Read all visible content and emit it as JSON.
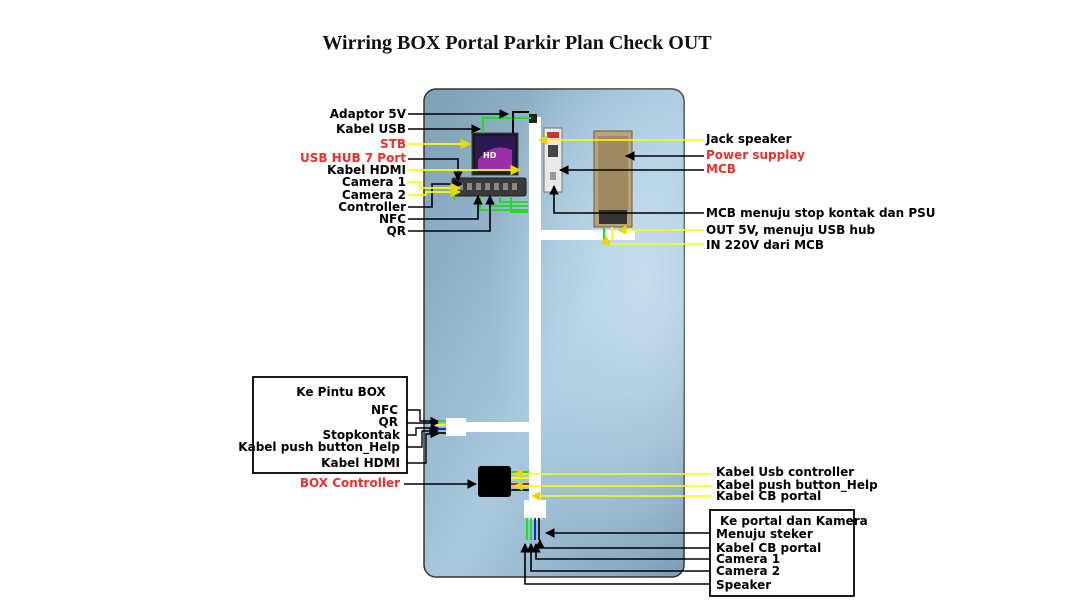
{
  "title": "Wirring BOX Portal Parkir Plan Check OUT",
  "left_labels": {
    "adaptor": "Adaptor 5V",
    "kabel_usb": "Kabel USB",
    "stb": "STB",
    "usb_hub": "USB HUB 7 Port",
    "kabel_hdmi": "Kabel HDMI",
    "camera1": "Camera 1",
    "camera2": "Camera 2",
    "controller": "Controller",
    "nfc": "NFC",
    "qr": "QR"
  },
  "right_labels": {
    "jack_speaker": "Jack speaker",
    "power_supply": "Power supplay",
    "mcb": "MCB",
    "mcb_stop": "MCB menuju stop kontak dan PSU",
    "out5v": "OUT 5V, menuju USB hub",
    "in220": "IN 220V dari MCB"
  },
  "pintu_box": {
    "heading": "Ke Pintu BOX",
    "nfc": "NFC",
    "qr": "QR",
    "stopkontak": "Stopkontak",
    "push_button": "Kabel push button_Help",
    "hdmi": "Kabel HDMI"
  },
  "box_controller": "BOX Controller",
  "controller_outputs": {
    "usb_controller": "Kabel Usb controller",
    "push_help": "Kabel push button_Help",
    "cb_portal": "Kabel CB portal"
  },
  "portal_kamera": {
    "heading": "Ke portal dan Kamera",
    "steker": "Menuju steker",
    "cb_portal": "Kabel CB portal",
    "camera1": "Camera 1",
    "camera2": "Camera 2",
    "speaker": "Speaker"
  },
  "colors": {
    "red_label": "#e8312e",
    "wire_yellow": "#ffff00",
    "wire_green": "#22dd22",
    "panel": "#8fb3cc"
  }
}
